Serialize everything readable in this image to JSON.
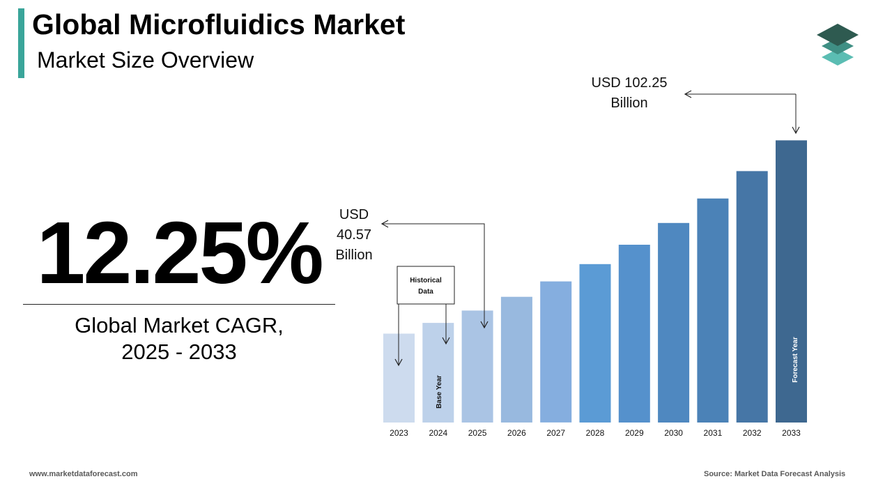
{
  "header": {
    "title": "Global Microfluidics Market",
    "subtitle": "Market Size Overview"
  },
  "kpi": {
    "cagr_value": "12.25%",
    "caption_line1": "Global Market CAGR,",
    "caption_line2": "2025 - 2033"
  },
  "annotations": {
    "start_value_lines": [
      "USD",
      "40.57",
      "Billion"
    ],
    "end_value_lines": [
      "USD 102.25",
      "Billion"
    ],
    "historical_box_lines": [
      "Historical",
      "Data"
    ],
    "base_year_label": "Base Year",
    "forecast_year_label": "Forecast Year"
  },
  "footer": {
    "website": "www.marketdataforecast.com",
    "source": "Source: Market Data Forecast Analysis"
  },
  "logo_icon": "stacked-layers-icon",
  "colors": {
    "accent": "#3aa59a",
    "logo_top": "#2e5a50",
    "logo_mid": "#3f8f84",
    "logo_bottom": "#5bbdb3",
    "bars": [
      "#cddbee",
      "#bdd1ea",
      "#aac4e4",
      "#98b9df",
      "#85aedf",
      "#5b9bd5",
      "#5591cc",
      "#4f88c0",
      "#4b82b7",
      "#4676a6",
      "#3e6890"
    ]
  },
  "chart_data": {
    "type": "bar",
    "categories": [
      "2023",
      "2024",
      "2025",
      "2026",
      "2027",
      "2028",
      "2029",
      "2030",
      "2031",
      "2032",
      "2033"
    ],
    "values": [
      32.2,
      36.1,
      40.57,
      45.54,
      51.12,
      57.39,
      64.42,
      72.31,
      81.17,
      91.09,
      102.25
    ],
    "ylim": [
      0,
      120
    ],
    "title": "",
    "xlabel": "",
    "ylabel": ""
  }
}
